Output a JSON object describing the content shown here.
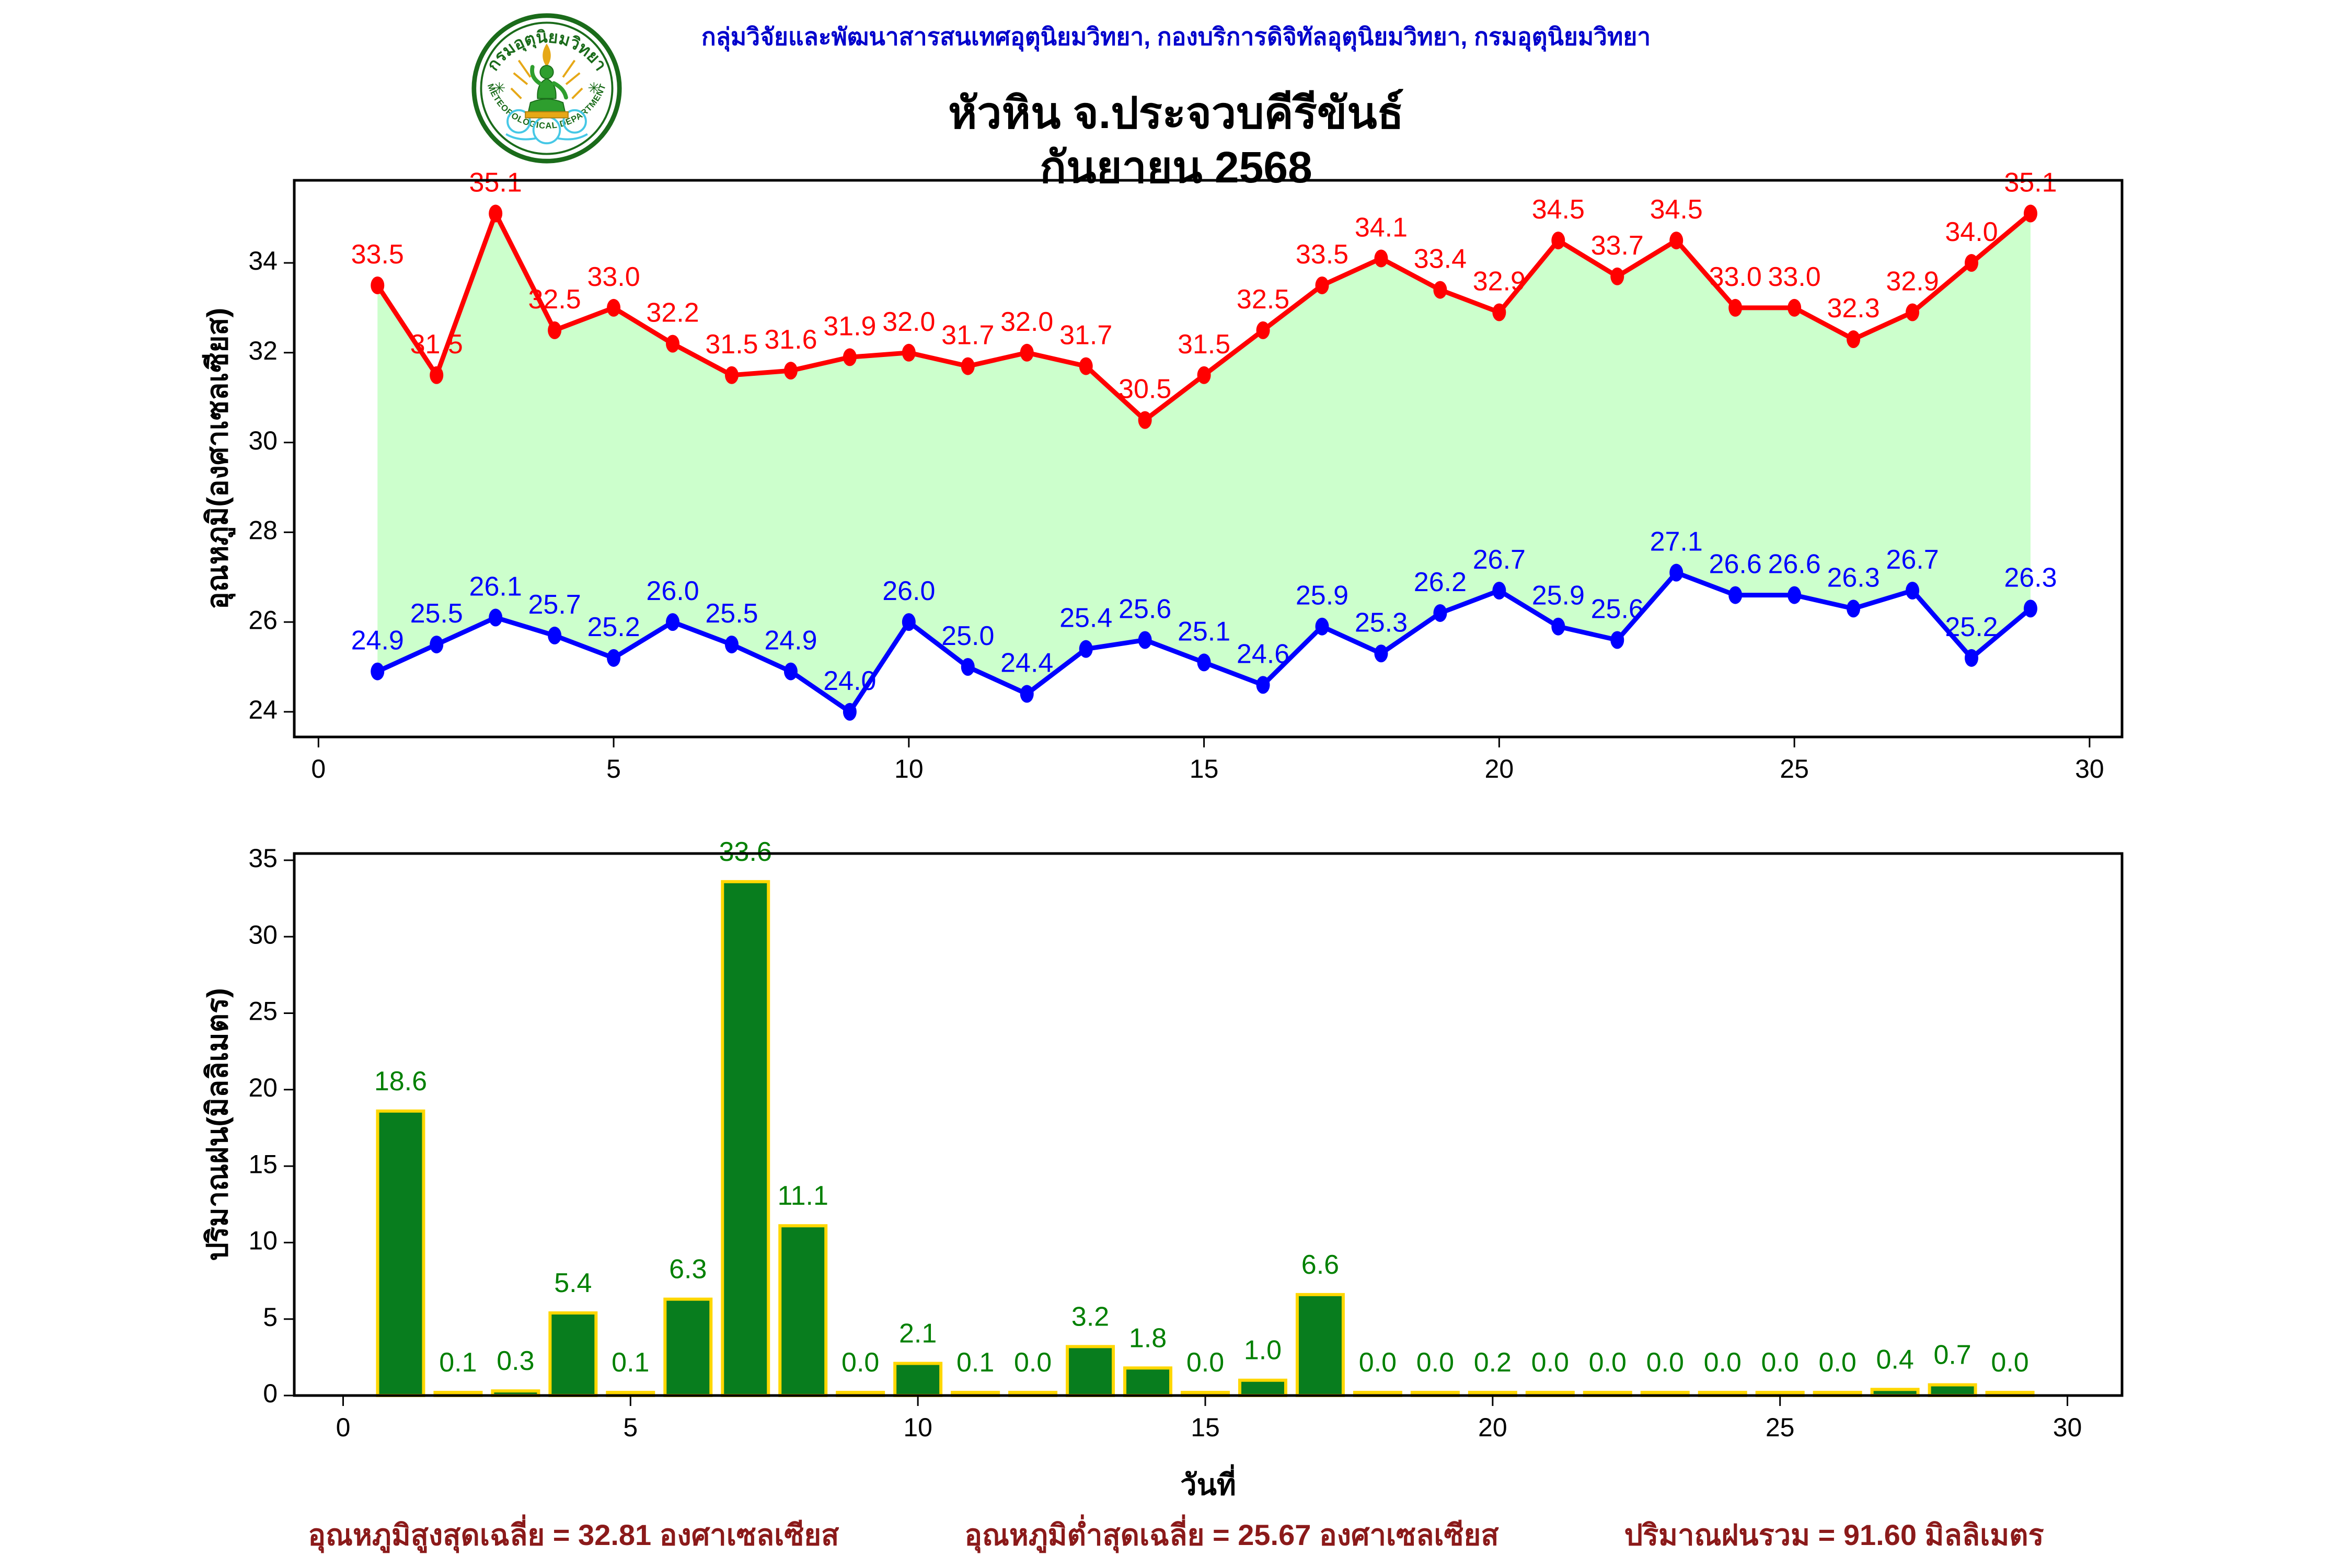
{
  "header": {
    "org_line": "กลุ่มวิจัยและพัฒนาสารสนเทศอุตุนิยมวิทยา, กองบริการดิจิทัลอุตุนิยมวิทยา, กรมอุตุนิยมวิทยา",
    "title": "หัวหิน จ.ประจวบคีรีขันธ์",
    "subtitle": "กันยายน 2568",
    "logo": {
      "thai_text": "กรมอุตุนิยมวิทยา",
      "english_text": "METEOROLOGICAL DEPARTMENT",
      "ring_color": "#1a6b1a",
      "gold_color": "#e6a817",
      "cloud_color": "#46c8e6",
      "figure_color": "#2e9e2e"
    }
  },
  "chart_data": [
    {
      "type": "line",
      "x": [
        1,
        2,
        3,
        4,
        5,
        6,
        7,
        8,
        9,
        10,
        11,
        12,
        13,
        14,
        15,
        16,
        17,
        18,
        19,
        20,
        21,
        22,
        23,
        24,
        25,
        26,
        27,
        28,
        29
      ],
      "series": [
        {
          "name": "max_temp",
          "color": "#ff0000",
          "values": [
            33.5,
            31.5,
            35.1,
            32.5,
            33.0,
            32.2,
            31.5,
            31.6,
            31.9,
            32.0,
            31.7,
            32.0,
            31.7,
            30.5,
            31.5,
            32.5,
            33.5,
            34.1,
            33.4,
            32.9,
            34.5,
            33.7,
            34.5,
            33.0,
            33.0,
            32.3,
            32.9,
            34.0,
            35.1
          ]
        },
        {
          "name": "min_temp",
          "color": "#0000ff",
          "values": [
            24.9,
            25.5,
            26.1,
            25.7,
            25.2,
            26.0,
            25.5,
            24.9,
            24.0,
            26.0,
            25.0,
            24.4,
            25.4,
            25.6,
            25.1,
            24.6,
            25.9,
            25.3,
            26.2,
            26.7,
            25.9,
            25.6,
            27.1,
            26.6,
            26.6,
            26.3,
            26.7,
            25.2,
            26.3
          ]
        }
      ],
      "fill_between_color": "#ccffcc",
      "ylabel": "อุณหภูมิ(องศาเซลเซียส)",
      "yticks": [
        24,
        26,
        28,
        30,
        32,
        34
      ],
      "xticks": [
        0,
        5,
        10,
        15,
        20,
        25,
        30
      ],
      "ylim": [
        23.44,
        35.84
      ],
      "xlim": [
        -0.41,
        30.55
      ],
      "grid": false,
      "legend": "none"
    },
    {
      "type": "bar",
      "x": [
        1,
        2,
        3,
        4,
        5,
        6,
        7,
        8,
        9,
        10,
        11,
        12,
        13,
        14,
        15,
        16,
        17,
        18,
        19,
        20,
        21,
        22,
        23,
        24,
        25,
        26,
        27,
        28,
        29
      ],
      "values": [
        18.6,
        0.1,
        0.3,
        5.4,
        0.1,
        6.3,
        33.6,
        11.1,
        0.0,
        2.1,
        0.1,
        0.0,
        3.2,
        1.8,
        0.0,
        1.0,
        6.6,
        0.0,
        0.0,
        0.2,
        0.0,
        0.0,
        0.0,
        0.0,
        0.0,
        0.0,
        0.4,
        0.7,
        0.0
      ],
      "bar_color": "#087d1e",
      "bar_edge_color": "#ffd700",
      "label_color": "#008000",
      "ylabel": "ปริมาณฝน(มิลลิเมตร)",
      "xlabel": "วันที่",
      "yticks": [
        0,
        5,
        10,
        15,
        20,
        25,
        30,
        35
      ],
      "xticks": [
        0,
        5,
        10,
        15,
        20,
        25,
        30
      ],
      "ylim": [
        0,
        35.44
      ],
      "xlim": [
        -0.85,
        30.95
      ],
      "grid": false,
      "legend": "none"
    }
  ],
  "footer": {
    "max_avg": "อุณหภูมิสูงสุดเฉลี่ย = 32.81 องศาเซลเซียส",
    "min_avg": "อุณหภูมิต่ำสุดเฉลี่ย = 25.67 องศาเซลเซียส",
    "rain_total": "ปริมาณฝนรวม = 91.60 มิลลิเมตร",
    "color": "#8b1a1a"
  }
}
